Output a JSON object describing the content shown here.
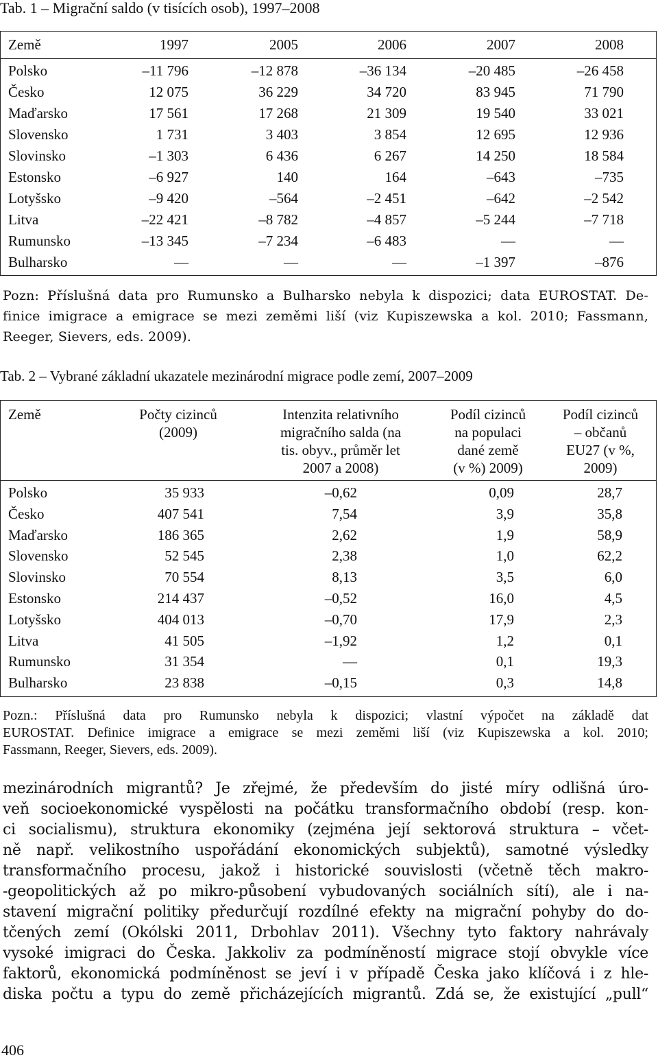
{
  "table1": {
    "title": "Tab. 1 – Migrační saldo (v tisících osob), 1997–2008",
    "header": [
      "Země",
      "1997",
      "2005",
      "2006",
      "2007",
      "2008"
    ],
    "rows": [
      [
        "Polsko",
        "–11 796",
        "–12 878",
        "–36 134",
        "–20 485",
        "–26 458"
      ],
      [
        "Česko",
        "12 075",
        "36 229",
        "34 720",
        "83 945",
        "71 790"
      ],
      [
        "Maďarsko",
        "17 561",
        "17 268",
        "21 309",
        "19 540",
        "33 021"
      ],
      [
        "Slovensko",
        "1 731",
        "3 403",
        "3 854",
        "12 695",
        "12 936"
      ],
      [
        "Slovinsko",
        "–1 303",
        "6 436",
        "6 267",
        "14 250",
        "18 584"
      ],
      [
        "Estonsko",
        "–6 927",
        "140",
        "164",
        "–643",
        "–735"
      ],
      [
        "Lotyšsko",
        "–9 420",
        "–564",
        "–2 451",
        "–642",
        "–2 542"
      ],
      [
        "Litva",
        "–22 421",
        "–8 782",
        "–4 857",
        "–5 244",
        "–7 718"
      ],
      [
        "Rumunsko",
        "–13 345",
        "–7 234",
        "–6 483",
        "—",
        "—"
      ],
      [
        "Bulharsko",
        "—",
        "—",
        "—",
        "–1 397",
        "–876"
      ]
    ],
    "note": [
      "Pozn: Příslušná data pro Rumunsko a Bulharsko nebyla k dispozici; data EUROSTAT. De-",
      "finice imigrace a emigrace se mezi zeměmi liší (viz Kupiszewska a kol. 2010; Fassmann,",
      "Reeger, Sievers, eds. 2009)."
    ]
  },
  "table2": {
    "title": "Tab. 2 – Vybrané základní ukazatele mezinárodní migrace podle zemí, 2007–2009",
    "header": [
      [
        "Země"
      ],
      [
        "Počty cizinců",
        "(2009)"
      ],
      [
        "Intenzita relativního",
        "migračního salda (na",
        "tis. obyv., průměr let",
        "2007 a 2008)"
      ],
      [
        "Podíl cizinců",
        "na populaci",
        "dané země",
        "(v %) 2009)"
      ],
      [
        "Podíl cizinců",
        "– občanů",
        "EU27 (v %,",
        "2009)"
      ]
    ],
    "rows": [
      [
        "Polsko",
        "35 933",
        "–0,62",
        "0,09",
        "28,7"
      ],
      [
        "Česko",
        "407 541",
        "7,54",
        "3,9",
        "35,8"
      ],
      [
        "Maďarsko",
        "186 365",
        "2,62",
        "1,9",
        "58,9"
      ],
      [
        "Slovensko",
        "52 545",
        "2,38",
        "1,0",
        "62,2"
      ],
      [
        "Slovinsko",
        "70 554",
        "8,13",
        "3,5",
        "6,0"
      ],
      [
        "Estonsko",
        "214 437",
        "–0,52",
        "16,0",
        "4,5"
      ],
      [
        "Lotyšsko",
        "404 013",
        "–0,70",
        "17,9",
        "2,3"
      ],
      [
        "Litva",
        "41 505",
        "–1,92",
        "1,2",
        "0,1"
      ],
      [
        "Rumunsko",
        "31 354",
        "—",
        "0,1",
        "19,3"
      ],
      [
        "Bulharsko",
        "23 838",
        "–0,15",
        "0,3",
        "14,8"
      ]
    ],
    "note": [
      "Pozn.: Příslušná data pro Rumunsko nebyla k dispozici; vlastní výpočet na základě dat",
      "EUROSTAT. Definice imigrace a emigrace se mezi zeměmi liší (viz Kupiszewska a kol. 2010;",
      "Fassmann, Reeger, Sievers, eds. 2009)."
    ]
  },
  "body": [
    "mezinárodních migrantů? Je zřejmé, že především do jisté míry odlišná úro-",
    "veň socioekonomické vyspělosti na počátku transformačního období (resp. kon-",
    "ci socialismu), struktura ekonomiky (zejména její sektorová struktura – včet-",
    "ně např. velikostního uspořádání ekonomických subjektů), samotné výsledky",
    "transformačního procesu, jakož i historické souvislosti (včetně těch makro-",
    "-geopolitických až po mikro-působení vybudovaných sociálních sítí), ale i na-",
    "stavení migrační politiky předurčují rozdílné efekty na migrační pohyby do do-",
    "tčených zemí (Okólski 2011, Drbohlav 2011). Všechny tyto faktory nahrávaly",
    "vysoké imigraci do Česka. Jakkoliv za podmíněností migrace stojí obvykle více",
    "faktorů, ekonomická podmíněnost se jeví i v případě Česka jako klíčová i z hle-",
    "diska počtu a typu do země přicházejících migrantů. Zdá se, že existující „pull“"
  ],
  "page_number": "406"
}
